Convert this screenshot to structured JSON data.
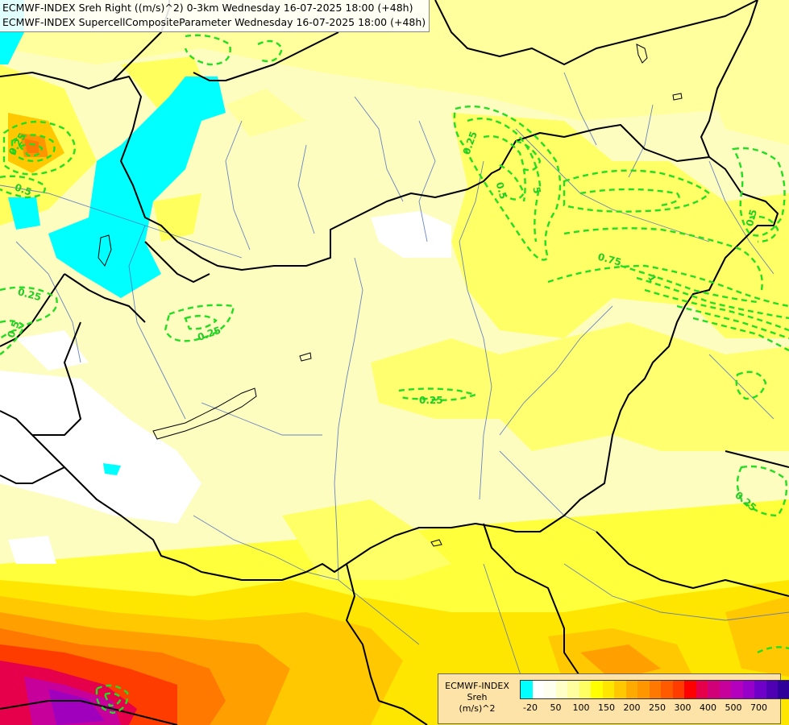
{
  "header": {
    "line1": "ECMWF-INDEX Sreh Right ((m/s)^2) 0-3km Wednesday 16-07-2025 18:00 (+48h)",
    "line2": "ECMWF-INDEX SupercellCompositeParameter Wednesday 16-07-2025 18:00 (+48h)"
  },
  "legend": {
    "title_line1": "ECMWF-INDEX",
    "title_line2": "Sreh",
    "title_line3": "(m/s)^2",
    "colors": [
      "#00ffff",
      "#ffffff",
      "#fffff0",
      "#ffffc8",
      "#ffffa0",
      "#ffff64",
      "#ffff00",
      "#ffe600",
      "#ffc800",
      "#ffaa00",
      "#ff9600",
      "#ff7800",
      "#ff5a00",
      "#ff3c00",
      "#ff0000",
      "#e6004b",
      "#d20078",
      "#c8009b",
      "#b400be",
      "#9600c8",
      "#6e00c8",
      "#5000b4",
      "#30009a",
      "#1e0078"
    ],
    "ticks": [
      "-20",
      "50",
      "100",
      "150",
      "200",
      "250",
      "300",
      "400",
      "500",
      "700"
    ]
  },
  "contours": {
    "scp_labels": [
      "0.25",
      "0.5",
      "0.25",
      "0.5",
      "0.25",
      "0.25",
      "0.25",
      "0.5",
      "0.75",
      "0.5",
      "0.25",
      "1",
      "5"
    ]
  }
}
